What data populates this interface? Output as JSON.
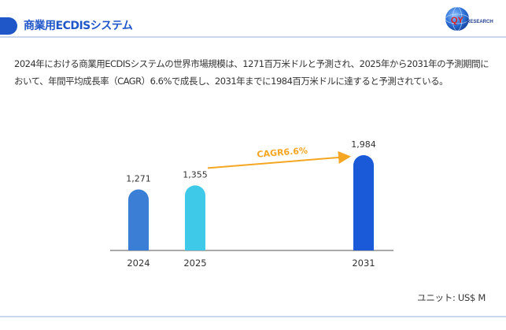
{
  "header": {
    "title": "商業用ECDISシステム",
    "accent_color": "#1f56c8"
  },
  "logo": {
    "text": "QYRESEARCH",
    "icon": "globe-logo-icon"
  },
  "description": "2024年における商業用ECDISシステムの世界市場規模は、1271百万米ドルと予測され、2025年から2031年の予測期間において、年間平均成長率（CAGR）6.6%で成長し、2031年までに1984百万米ドルに達すると予測されている。",
  "chart_data": {
    "type": "bar",
    "categories": [
      "2024",
      "2025",
      "2031"
    ],
    "values": [
      1271,
      1355,
      1984
    ],
    "value_labels": [
      "1,271",
      "1,355",
      "1,984"
    ],
    "colors": [
      "#3a7fd5",
      "#3fc9e8",
      "#1a5ad8"
    ],
    "annotation": {
      "text": "CAGR6.6%",
      "from": "2025",
      "to": "2031",
      "color": "#f5a623"
    },
    "legend": "none",
    "grid": false
  },
  "unit_note": "ユニット: US$ M"
}
